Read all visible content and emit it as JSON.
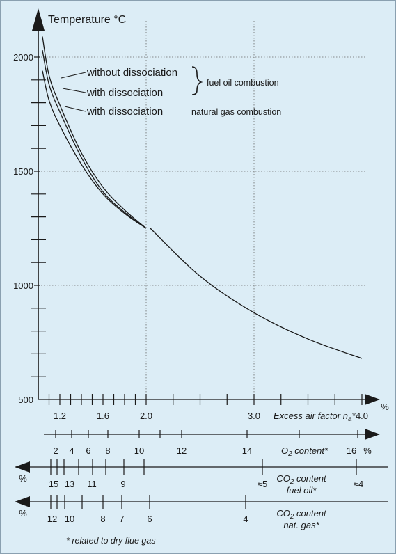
{
  "chart_data": {
    "type": "line",
    "ylabel": "Temperature °C",
    "y_ticks": [
      500,
      1000,
      1500,
      2000
    ],
    "ylim": [
      500,
      2100
    ],
    "grid": true,
    "series": [
      {
        "name": "without dissociation",
        "x": [
          1.0,
          1.1,
          1.2,
          1.4,
          1.6,
          1.8,
          2.0
        ],
        "y": [
          2090,
          1920,
          1790,
          1580,
          1430,
          1330,
          1250
        ]
      },
      {
        "name": "with dissociation",
        "x": [
          1.0,
          1.1,
          1.2,
          1.4,
          1.6,
          1.8,
          2.0
        ],
        "y": [
          2030,
          1880,
          1760,
          1560,
          1410,
          1320,
          1250
        ]
      },
      {
        "name": "with dissociation",
        "x": [
          1.0,
          1.1,
          1.2,
          1.4,
          1.6,
          1.8,
          2.0
        ],
        "y": [
          1940,
          1810,
          1700,
          1530,
          1400,
          1315,
          1250
        ]
      },
      {
        "name": "",
        "x": [
          2.0,
          2.5,
          3.0,
          3.5,
          4.0
        ],
        "y": [
          1250,
          1040,
          880,
          765,
          680
        ]
      }
    ],
    "legend_groups": [
      {
        "label": "fuel oil combustion",
        "entries": [
          "without dissociation",
          "with dissociation"
        ]
      },
      {
        "label": "natural gas combustion",
        "entries": [
          "with dissociation"
        ]
      }
    ],
    "excess_air_axis": {
      "label": "Excess air factor n",
      "label_sub": "a",
      "label_suffix": "*",
      "unit": "%",
      "tick_labels": [
        "1.2",
        "1.6",
        "2.0",
        "3.0",
        "4.0"
      ]
    },
    "o2_axis": {
      "label": "O",
      "label_sub": "2",
      "label_suffix": " content*",
      "unit": "%",
      "tick_labels": [
        "2",
        "4",
        "6",
        "8",
        "10",
        "12",
        "14",
        "16"
      ]
    },
    "co2_oil_axis": {
      "label_line1_a": "CO",
      "label_line1_sub": "2",
      "label_line1_b": " content",
      "label_line2": "fuel oil*",
      "unit": "%",
      "tick_labels": [
        "15",
        "13",
        "11",
        "9",
        "≈5",
        "≈4"
      ]
    },
    "co2_gas_axis": {
      "label_line1_a": "CO",
      "label_line1_sub": "2",
      "label_line1_b": " content",
      "label_line2": "nat. gas*",
      "unit": "%",
      "tick_labels": [
        "12",
        "10",
        "8",
        "7",
        "6",
        "4"
      ]
    },
    "footnote": "* related to dry flue gas"
  },
  "colors": {
    "background": "#dcedf6",
    "ink": "#1a1a1a",
    "grid": "#666666"
  }
}
